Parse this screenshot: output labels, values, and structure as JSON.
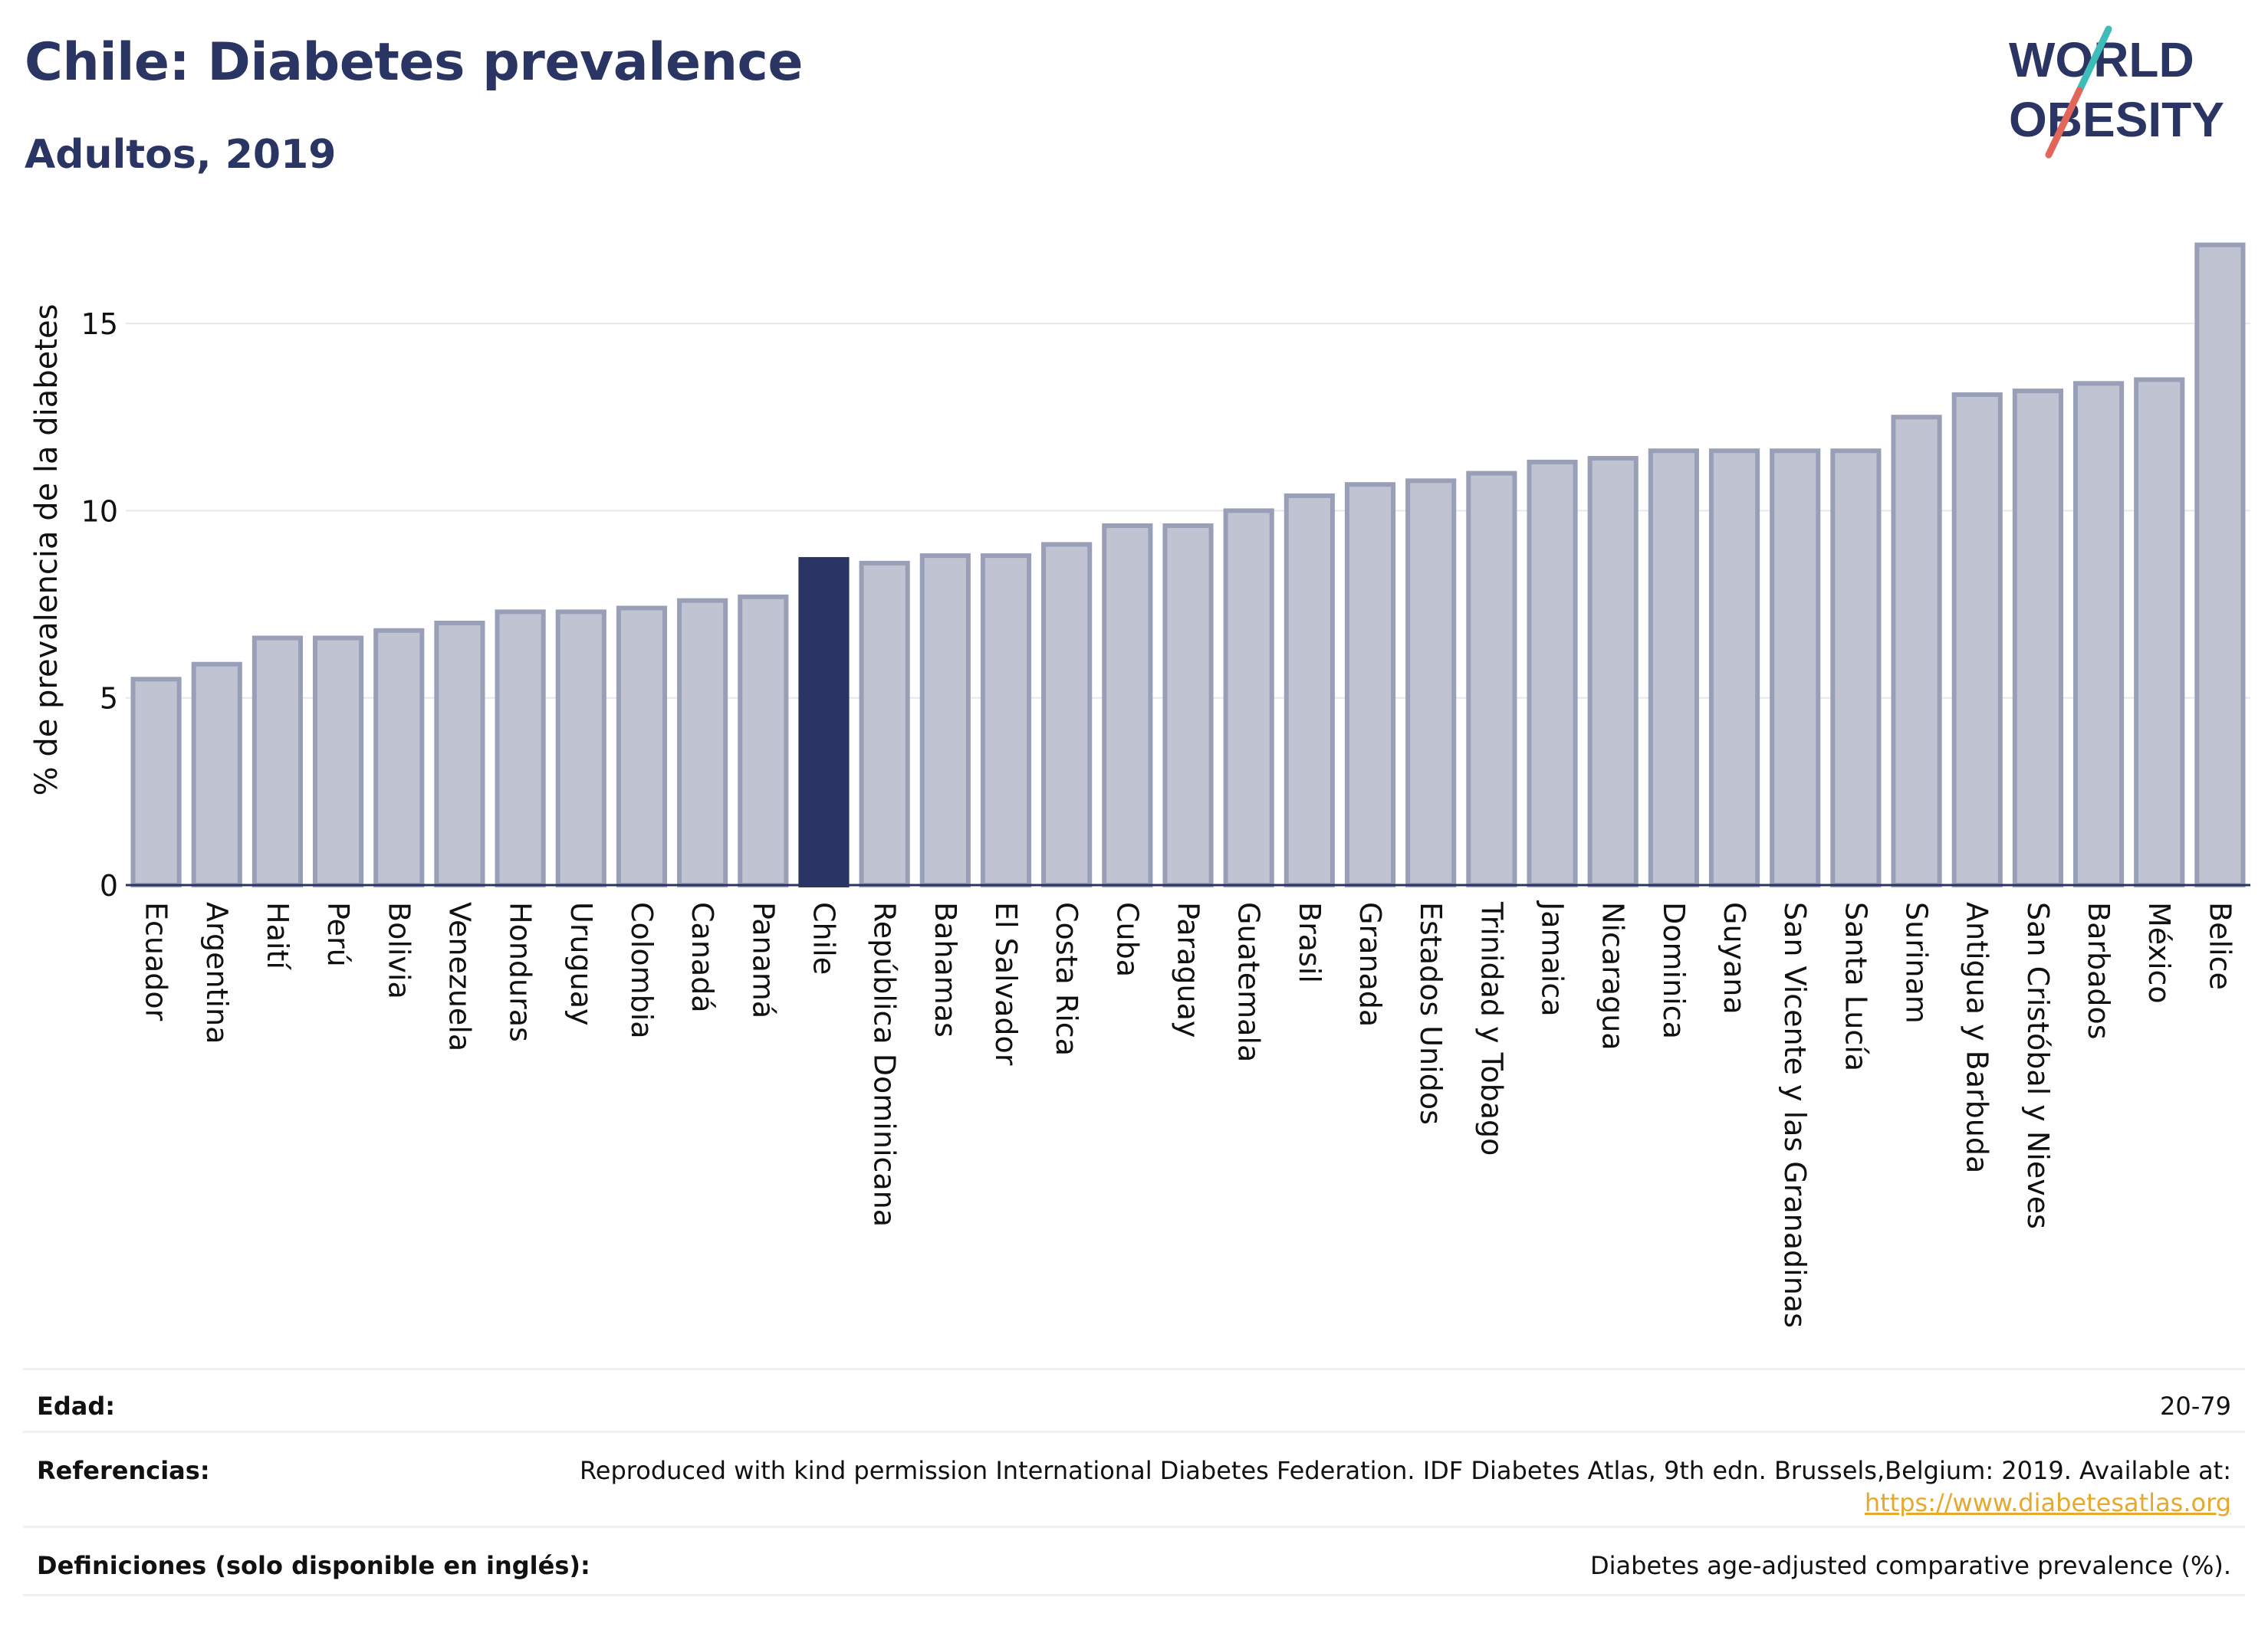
{
  "header": {
    "title": "Chile: Diabetes prevalence",
    "subtitle": "Adultos, 2019"
  },
  "logo": {
    "line1": "WORLD",
    "line2": "OBESITY",
    "accent_colors": [
      "#3dbcb8",
      "#e2665a"
    ]
  },
  "colors": {
    "bar": "#c0c3d1",
    "bar_stroke": "#9a9fb8",
    "highlight": "#2a3563",
    "text": "#2a3563"
  },
  "chart_data": {
    "type": "bar",
    "ylabel": "% de prevalencia de la diabetes",
    "xlabel": "",
    "ylim": [
      0,
      17.5
    ],
    "yticks": [
      0,
      5,
      10,
      15
    ],
    "grid": true,
    "highlight": "Chile",
    "categories": [
      "Ecuador",
      "Argentina",
      "Haití",
      "Perú",
      "Bolivia",
      "Venezuela",
      "Honduras",
      "Uruguay",
      "Colombia",
      "Canadá",
      "Panamá",
      "Chile",
      "República Dominicana",
      "Bahamas",
      "El Salvador",
      "Costa Rica",
      "Cuba",
      "Paraguay",
      "Guatemala",
      "Brasil",
      "Granada",
      "Estados Unidos",
      "Trinidad y Tobago",
      "Jamaica",
      "Nicaragua",
      "Dominica",
      "Guyana",
      "San Vicente y las Granadinas",
      "Santa Lucía",
      "Surinam",
      "Antigua y Barbuda",
      "San Cristóbal y Nieves",
      "Barbados",
      "México",
      "Belice"
    ],
    "values": [
      5.5,
      5.9,
      6.6,
      6.6,
      6.8,
      7.0,
      7.3,
      7.3,
      7.4,
      7.6,
      7.7,
      8.7,
      8.6,
      8.8,
      8.8,
      9.1,
      9.6,
      9.6,
      10.0,
      10.4,
      10.7,
      10.8,
      11.0,
      11.3,
      11.4,
      11.6,
      11.6,
      11.6,
      11.6,
      12.5,
      13.1,
      13.2,
      13.4,
      13.5,
      17.1
    ]
  },
  "footer": {
    "age_label": "Edad:",
    "age_value": "20-79",
    "refs_label": "Referencias:",
    "refs_text": "Reproduced with kind permission International Diabetes Federation. IDF Diabetes Atlas, 9th edn. Brussels,Belgium: 2019. Available at:",
    "refs_link": "https://www.diabetesatlas.org",
    "defs_label": "Definiciones (solo disponible en inglés):",
    "defs_value": "Diabetes age-adjusted comparative prevalence (%)."
  }
}
